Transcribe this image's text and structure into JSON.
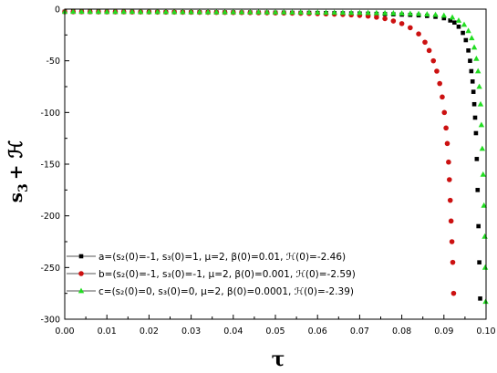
{
  "chart_data": {
    "type": "scatter",
    "title": "",
    "xlabel": "τ",
    "ylabel_main": "s",
    "ylabel_sub": "3",
    "ylabel_rest": "+ ℋ",
    "xlim": [
      0.0,
      0.1
    ],
    "ylim": [
      -300,
      0
    ],
    "xticks": [
      "0.00",
      "0.01",
      "0.02",
      "0.03",
      "0.04",
      "0.05",
      "0.06",
      "0.07",
      "0.08",
      "0.09",
      "0.10"
    ],
    "yticks": [
      "0",
      "-50",
      "-100",
      "-150",
      "-200",
      "-250",
      "-300"
    ],
    "legend_placement": "bottom-left",
    "series": [
      {
        "name": "a=(s₂(0)=-1, s₃(0)=1, μ=2, β(0)=0.01, ℋ(0)=-2.46)",
        "color": "#000000",
        "marker": "square",
        "x": [
          0.0,
          0.002,
          0.004,
          0.006,
          0.008,
          0.01,
          0.012,
          0.014,
          0.016,
          0.018,
          0.02,
          0.022,
          0.024,
          0.026,
          0.028,
          0.03,
          0.032,
          0.034,
          0.036,
          0.038,
          0.04,
          0.042,
          0.044,
          0.046,
          0.048,
          0.05,
          0.052,
          0.054,
          0.056,
          0.058,
          0.06,
          0.062,
          0.064,
          0.066,
          0.068,
          0.07,
          0.072,
          0.074,
          0.076,
          0.078,
          0.08,
          0.082,
          0.084,
          0.086,
          0.088,
          0.09,
          0.0915,
          0.0925,
          0.0935,
          0.0945,
          0.0952,
          0.0958,
          0.0962,
          0.0965,
          0.0968,
          0.097,
          0.0972,
          0.0974,
          0.0976,
          0.0978,
          0.098,
          0.0982,
          0.0984,
          0.0986
        ],
        "y": [
          -2.5,
          -2.5,
          -2.6,
          -2.6,
          -2.6,
          -2.7,
          -2.7,
          -2.7,
          -2.7,
          -2.8,
          -2.8,
          -2.8,
          -2.9,
          -2.9,
          -2.9,
          -3.0,
          -3.0,
          -3.0,
          -3.1,
          -3.1,
          -3.1,
          -3.2,
          -3.2,
          -3.3,
          -3.3,
          -3.4,
          -3.4,
          -3.5,
          -3.6,
          -3.6,
          -3.7,
          -3.8,
          -3.9,
          -4.0,
          -4.1,
          -4.2,
          -4.4,
          -4.6,
          -4.8,
          -5.0,
          -5.3,
          -5.6,
          -6.0,
          -6.6,
          -7.4,
          -8.8,
          -11,
          -13,
          -17,
          -23,
          -30,
          -40,
          -50,
          -60,
          -70,
          -80,
          -92,
          -105,
          -120,
          -145,
          -175,
          -210,
          -245,
          -280
        ]
      },
      {
        "name": "b=(s₂(0)=-1, s₃(0)=-1, μ=2, β(0)=0.001, ℋ(0)=-2.59)",
        "color": "#cc1111",
        "marker": "circle",
        "x": [
          0.0,
          0.002,
          0.004,
          0.006,
          0.008,
          0.01,
          0.012,
          0.014,
          0.016,
          0.018,
          0.02,
          0.022,
          0.024,
          0.026,
          0.028,
          0.03,
          0.032,
          0.034,
          0.036,
          0.038,
          0.04,
          0.042,
          0.044,
          0.046,
          0.048,
          0.05,
          0.052,
          0.054,
          0.056,
          0.058,
          0.06,
          0.062,
          0.064,
          0.066,
          0.068,
          0.07,
          0.072,
          0.074,
          0.076,
          0.078,
          0.08,
          0.082,
          0.084,
          0.0855,
          0.0865,
          0.0875,
          0.0883,
          0.089,
          0.0896,
          0.0901,
          0.0905,
          0.0908,
          0.0911,
          0.0913,
          0.0915,
          0.0917,
          0.0919,
          0.0921,
          0.0923
        ],
        "y": [
          -2.6,
          -2.6,
          -2.6,
          -2.6,
          -2.7,
          -2.7,
          -2.7,
          -2.7,
          -2.8,
          -2.8,
          -2.8,
          -2.9,
          -2.9,
          -2.9,
          -3.0,
          -3.0,
          -3.1,
          -3.1,
          -3.2,
          -3.2,
          -3.3,
          -3.3,
          -3.4,
          -3.5,
          -3.6,
          -3.7,
          -3.8,
          -3.9,
          -4.0,
          -4.2,
          -4.4,
          -4.6,
          -4.9,
          -5.2,
          -5.6,
          -6.1,
          -6.8,
          -7.8,
          -9.2,
          -11.5,
          -14,
          -18,
          -24,
          -32,
          -40,
          -50,
          -60,
          -72,
          -85,
          -100,
          -115,
          -130,
          -148,
          -165,
          -185,
          -205,
          -225,
          -245,
          -275
        ]
      },
      {
        "name": "c=(s₂(0)=0, s₃(0)=0, μ=2, β(0)=0.0001, ℋ(0)=-2.39)",
        "color": "#22dd22",
        "marker": "triangle",
        "x": [
          0.0,
          0.002,
          0.004,
          0.006,
          0.008,
          0.01,
          0.012,
          0.014,
          0.016,
          0.018,
          0.02,
          0.022,
          0.024,
          0.026,
          0.028,
          0.03,
          0.032,
          0.034,
          0.036,
          0.038,
          0.04,
          0.042,
          0.044,
          0.046,
          0.048,
          0.05,
          0.052,
          0.054,
          0.056,
          0.058,
          0.06,
          0.062,
          0.064,
          0.066,
          0.068,
          0.07,
          0.072,
          0.074,
          0.076,
          0.078,
          0.08,
          0.082,
          0.084,
          0.086,
          0.088,
          0.09,
          0.092,
          0.0935,
          0.0948,
          0.0958,
          0.0966,
          0.0972,
          0.0977,
          0.0981,
          0.0984,
          0.0987,
          0.0989,
          0.0991,
          0.0993,
          0.0995,
          0.0997,
          0.0998,
          0.0999
        ],
        "y": [
          -2.4,
          -2.4,
          -2.4,
          -2.4,
          -2.5,
          -2.5,
          -2.5,
          -2.5,
          -2.5,
          -2.6,
          -2.6,
          -2.6,
          -2.6,
          -2.7,
          -2.7,
          -2.7,
          -2.7,
          -2.8,
          -2.8,
          -2.8,
          -2.8,
          -2.9,
          -2.9,
          -2.9,
          -3.0,
          -3.0,
          -3.0,
          -3.1,
          -3.1,
          -3.2,
          -3.2,
          -3.3,
          -3.3,
          -3.4,
          -3.5,
          -3.5,
          -3.6,
          -3.7,
          -3.8,
          -3.9,
          -4.1,
          -4.3,
          -4.5,
          -4.9,
          -5.4,
          -6.2,
          -8.0,
          -11,
          -15,
          -21,
          -28,
          -37,
          -48,
          -60,
          -75,
          -92,
          -112,
          -135,
          -160,
          -190,
          -220,
          -250,
          -283
        ]
      }
    ]
  }
}
